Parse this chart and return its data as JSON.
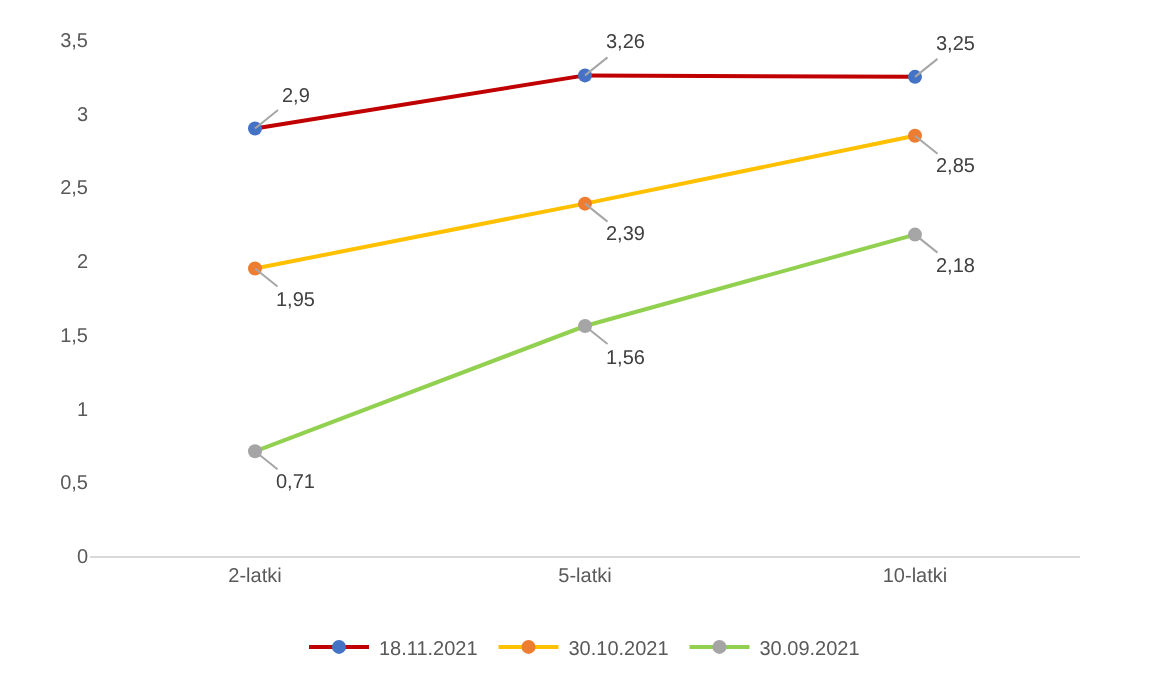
{
  "chart_data": {
    "type": "line",
    "categories": [
      "2-latki",
      "5-latki",
      "10-latki"
    ],
    "series": [
      {
        "name": "18.11.2021",
        "color": "#c00000",
        "colors": [
          "#4472c4",
          "#4472c4",
          "#4472c4"
        ],
        "values": [
          2.9,
          3.26,
          3.25
        ],
        "value_labels": [
          "2,9",
          "3,26",
          "3,25"
        ]
      },
      {
        "name": "30.10.2021",
        "color": "#ffc000",
        "colors": [
          "#ed7d31",
          "#ed7d31",
          "#ed7d31"
        ],
        "values": [
          1.95,
          2.39,
          2.85
        ],
        "value_labels": [
          "1,95",
          "2,39",
          "2,85"
        ]
      },
      {
        "name": "30.09.2021",
        "color": "#92d050",
        "colors": [
          "#a5a5a5",
          "#a5a5a5",
          "#a5a5a5"
        ],
        "values": [
          0.71,
          1.56,
          2.18
        ],
        "value_labels": [
          "0,71",
          "1,56",
          "2,18"
        ]
      }
    ],
    "ylim": [
      0,
      3.5
    ],
    "yticks": [
      0,
      {
        "value": 0.5,
        "label": "0,5"
      },
      1,
      {
        "value": 1.5,
        "label": "1,5"
      },
      2,
      {
        "value": 2.5,
        "label": "2,5"
      },
      3,
      {
        "value": 3.5,
        "label": "3,5"
      }
    ],
    "legend": "bottom",
    "marker": "circle",
    "line_style": "solid"
  }
}
